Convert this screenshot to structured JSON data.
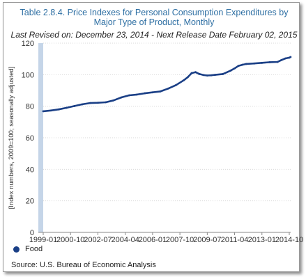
{
  "window": {
    "title": "Table 2.8.4. Price Indexes for Personal Consumption Expenditures by Major Type of Product, Monthly",
    "subtitle": "Last Revised on: December 23, 2014 - Next Release Date February 02, 2015",
    "source": "Source: U.S. Bureau of Economic  Analysis"
  },
  "colors": {
    "title": "#2e6fa3",
    "series": "#1a3f86",
    "axis_band": "#c5d5e8"
  },
  "chart_data": {
    "type": "line",
    "title": "Table 2.8.4. Price Indexes for Personal Consumption Expenditures by Major Type of Product, Monthly",
    "subtitle": "Last Revised on: December 23, 2014 - Next Release Date February 02, 2015",
    "ylabel": "[Index numbers, 2009=100; seasonally adjusted]",
    "xlabel": "",
    "ylim": [
      0,
      120
    ],
    "yticks": [
      "0",
      "20",
      "40",
      "60",
      "80",
      "100",
      "120"
    ],
    "xticks": [
      "1999-01",
      "2000-10",
      "2002-07",
      "2004-04",
      "2006-01",
      "2007-10",
      "2009-07",
      "2011-04",
      "2013-01",
      "2014-10"
    ],
    "grid": true,
    "legend_position": "bottom-left",
    "series": [
      {
        "name": "Food",
        "x": [
          "1999-01",
          "1999-07",
          "2000-01",
          "2000-07",
          "2001-01",
          "2001-07",
          "2002-01",
          "2002-07",
          "2003-01",
          "2003-07",
          "2004-01",
          "2004-07",
          "2005-01",
          "2005-07",
          "2006-01",
          "2006-07",
          "2007-01",
          "2007-07",
          "2008-01",
          "2008-04",
          "2008-07",
          "2008-10",
          "2009-01",
          "2009-04",
          "2009-07",
          "2009-10",
          "2010-01",
          "2010-07",
          "2011-01",
          "2011-04",
          "2011-07",
          "2011-10",
          "2012-01",
          "2012-07",
          "2013-01",
          "2013-07",
          "2014-01",
          "2014-04",
          "2014-07",
          "2014-10",
          "2014-11"
        ],
        "values": [
          76.8,
          77.3,
          78.0,
          79.0,
          80.1,
          81.2,
          82.0,
          82.2,
          82.5,
          83.7,
          85.6,
          86.9,
          87.4,
          88.2,
          88.8,
          89.4,
          91.2,
          93.4,
          96.5,
          98.4,
          101.0,
          101.6,
          100.4,
          99.8,
          99.5,
          99.6,
          99.9,
          100.4,
          102.6,
          104.0,
          105.6,
          106.3,
          106.8,
          107.1,
          107.5,
          107.9,
          108.1,
          109.3,
          110.3,
          110.8,
          111.2
        ]
      }
    ]
  }
}
